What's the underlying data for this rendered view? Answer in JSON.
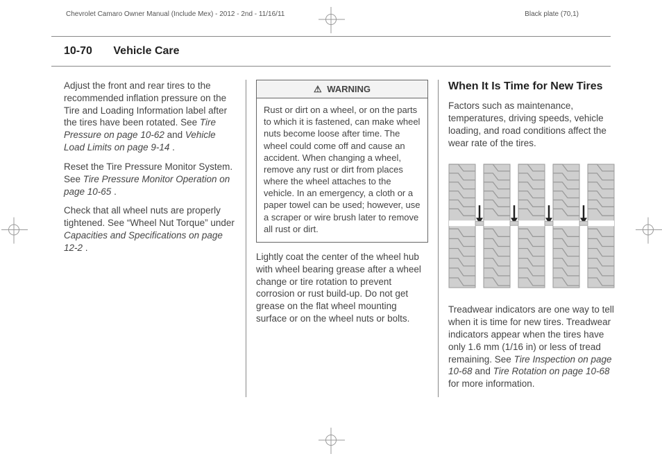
{
  "header": {
    "left": "Chevrolet Camaro Owner Manual (Include Mex) - 2012 - 2nd - 11/16/11",
    "right": "Black plate (70,1)"
  },
  "page": {
    "section_number": "10-70",
    "section_title": "Vehicle Care"
  },
  "col1": {
    "p1a": "Adjust the front and rear tires to the recommended inflation pressure on the Tire and Loading Information label after the tires have been rotated. See ",
    "p1_link1": "Tire Pressure on page 10-62",
    "p1b": " and ",
    "p1_link2": "Vehicle Load Limits on page 9-14",
    "p1c": ".",
    "p2a": "Reset the Tire Pressure Monitor System. See ",
    "p2_link": "Tire Pressure Monitor Operation on page 10-65",
    "p2b": ".",
    "p3a": "Check that all wheel nuts are properly tightened. See “Wheel Nut Torque” under ",
    "p3_link": "Capacities and Specifications on page 12-2",
    "p3b": "."
  },
  "col2": {
    "warning_label": "WARNING",
    "warning_body": "Rust or dirt on a wheel, or on the parts to which it is fastened, can make wheel nuts become loose after time. The wheel could come off and cause an accident. When changing a wheel, remove any rust or dirt from places where the wheel attaches to the vehicle. In an emergency, a cloth or a paper towel can be used; however, use a scraper or wire brush later to remove all rust or dirt.",
    "p1": "Lightly coat the center of the wheel hub with wheel bearing grease after a wheel change or tire rotation to prevent corrosion or rust build-up. Do not get grease on the flat wheel mounting surface or on the wheel nuts or bolts."
  },
  "col3": {
    "heading": "When It Is Time for New Tires",
    "p1": "Factors such as maintenance, temperatures, driving speeds, vehicle loading, and road conditions affect the wear rate of the tires.",
    "p2a": "Treadwear indicators are one way to tell when it is time for new tires. Treadwear indicators appear when the tires have only 1.6 mm (1/16 in) or less of tread remaining. See ",
    "p2_link1": "Tire Inspection on page 10-68",
    "p2b": " and ",
    "p2_link2": "Tire Rotation on page 10-68",
    "p2c": " for more information."
  },
  "tire_figure": {
    "rib_count": 5,
    "rib_width": 38,
    "rib_gap": 12,
    "arrow_count": 4,
    "colors": {
      "tread": "#cfcfcf",
      "tread_line": "#9a9a9a",
      "bg": "#ffffff",
      "arrow": "#222222"
    }
  }
}
